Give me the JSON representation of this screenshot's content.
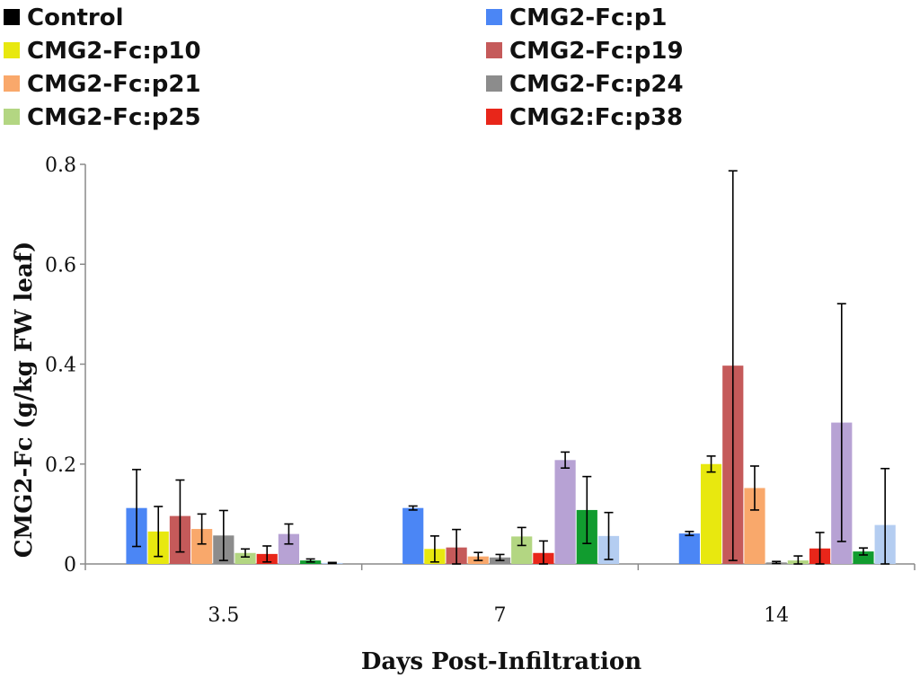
{
  "chart_data": {
    "type": "bar",
    "title": "",
    "xlabel": "Days Post-Infiltration",
    "ylabel": "CMG2-Fc (g/kg FW leaf)",
    "categories": [
      "3.5",
      "7",
      "14"
    ],
    "ylim": [
      0,
      0.8
    ],
    "yticks": [
      0,
      0.2,
      0.4,
      0.6,
      0.8
    ],
    "ytick_labels": [
      "0",
      "0.2",
      "0.4",
      "0.6",
      "0.8"
    ],
    "legend_position": "top",
    "series": [
      {
        "name": "Control",
        "color": "#000000",
        "values": [
          0,
          0,
          0
        ],
        "errors": [
          0,
          0,
          0
        ]
      },
      {
        "name": "CMG2-Fc:p1",
        "color": "#4b86f5",
        "values": [
          0.112,
          0.112,
          0.061
        ],
        "errors": [
          0.077,
          0.004,
          0.004
        ]
      },
      {
        "name": "CMG2-Fc:p10",
        "color": "#e8e80f",
        "values": [
          0.065,
          0.03,
          0.2
        ],
        "errors": [
          0.05,
          0.026,
          0.016
        ]
      },
      {
        "name": "CMG2-Fc:p19",
        "color": "#c55a5a",
        "values": [
          0.096,
          0.033,
          0.397
        ],
        "errors": [
          0.072,
          0.036,
          0.39
        ]
      },
      {
        "name": "CMG2-Fc:p21",
        "color": "#f9a86b",
        "values": [
          0.07,
          0.015,
          0.152
        ],
        "errors": [
          0.03,
          0.008,
          0.044
        ]
      },
      {
        "name": "CMG2-Fc:p24",
        "color": "#8c8c8c",
        "values": [
          0.057,
          0.013,
          0.003
        ],
        "errors": [
          0.05,
          0.006,
          0.002
        ]
      },
      {
        "name": "CMG2-Fc:p25",
        "color": "#b3d682",
        "values": [
          0.022,
          0.055,
          0.007
        ],
        "errors": [
          0.008,
          0.018,
          0.009
        ]
      },
      {
        "name": "CMG2:Fc:p38",
        "color": "#e8261a",
        "values": [
          0.02,
          0.022,
          0.031
        ],
        "errors": [
          0.016,
          0.024,
          0.032
        ]
      },
      {
        "name": "",
        "color": "#b7a2d4",
        "values": [
          0.06,
          0.208,
          0.283
        ],
        "errors": [
          0.02,
          0.016,
          0.238
        ]
      },
      {
        "name": "",
        "color": "#119c2f",
        "values": [
          0.007,
          0.108,
          0.025
        ],
        "errors": [
          0.003,
          0.067,
          0.007
        ]
      },
      {
        "name": "",
        "color": "#b4cdf1",
        "values": [
          0.002,
          0.056,
          0.078
        ],
        "errors": [
          0.001,
          0.047,
          0.113
        ]
      }
    ]
  }
}
